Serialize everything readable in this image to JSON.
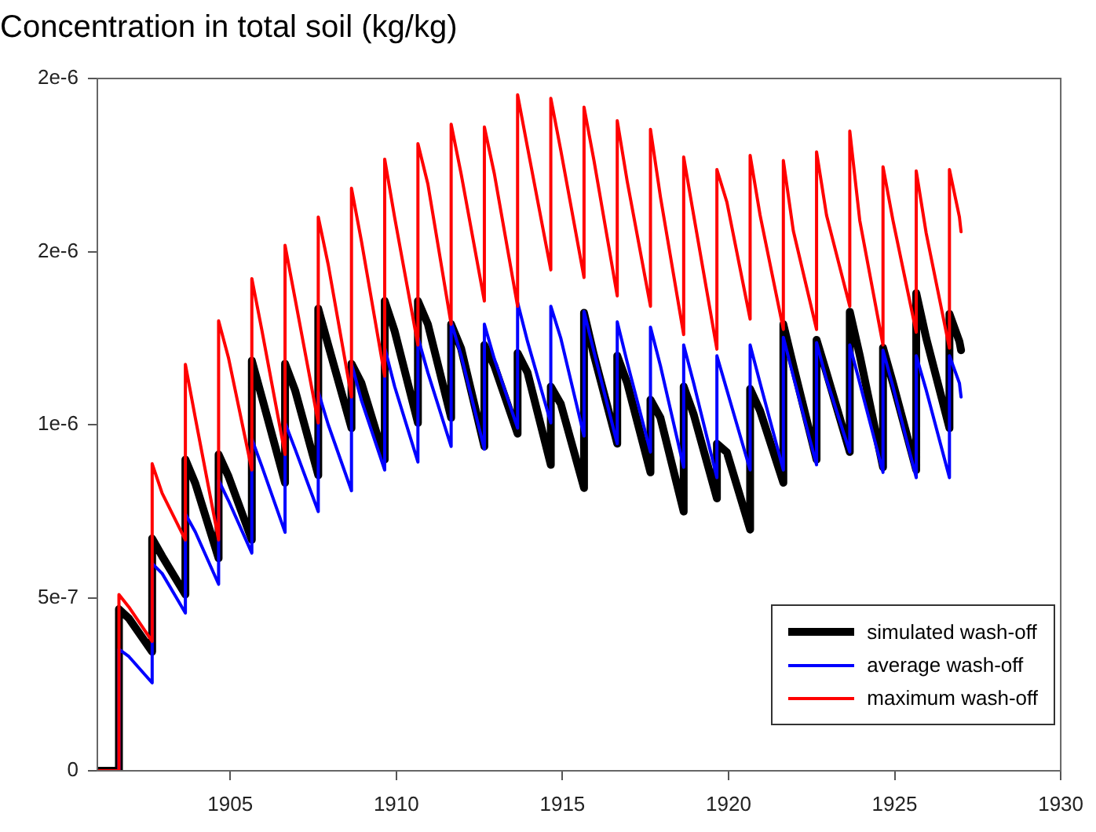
{
  "chart_data": {
    "type": "line",
    "title": "Concentration in total soil (kg/kg)",
    "x": [
      1901,
      1901.65,
      1901.65,
      1901.95,
      1902.65,
      1902.65,
      1902.95,
      1903.65,
      1903.65,
      1903.95,
      1904.65,
      1904.65,
      1904.95,
      1905.65,
      1905.65,
      1905.95,
      1906.65,
      1906.65,
      1906.95,
      1907.65,
      1907.65,
      1907.95,
      1908.65,
      1908.65,
      1908.95,
      1909.65,
      1909.65,
      1909.95,
      1910.65,
      1910.65,
      1910.95,
      1911.65,
      1911.65,
      1911.95,
      1912.65,
      1912.65,
      1912.95,
      1913.65,
      1913.65,
      1913.95,
      1914.65,
      1914.65,
      1914.95,
      1915.65,
      1915.65,
      1915.95,
      1916.65,
      1916.65,
      1916.95,
      1917.65,
      1917.65,
      1917.95,
      1918.65,
      1918.65,
      1918.95,
      1919.65,
      1919.65,
      1919.95,
      1920.65,
      1920.65,
      1920.95,
      1921.65,
      1921.65,
      1921.95,
      1922.65,
      1922.65,
      1922.95,
      1923.65,
      1923.65,
      1923.95,
      1924.65,
      1924.65,
      1924.95,
      1925.65,
      1925.65,
      1925.95,
      1926.65,
      1926.65,
      1926.95,
      1927
    ],
    "series": [
      {
        "name": "simulated wash-off",
        "color": "#000000",
        "values": [
          0,
          0,
          4.67e-07,
          4.4e-07,
          3.44e-07,
          6.71e-07,
          6.2e-07,
          5.09e-07,
          8.99e-07,
          8.3e-07,
          6.14e-07,
          9.14e-07,
          8.5e-07,
          6.67e-07,
          1.185e-06,
          1.08e-06,
          8.32e-07,
          1.176e-06,
          1.1e-06,
          8.54e-07,
          1.335e-06,
          1.23e-06,
          9.9e-07,
          1.176e-06,
          1.12e-06,
          8.99e-07,
          1.357e-06,
          1.27e-06,
          1.005e-06,
          1.357e-06,
          1.29e-06,
          1.02e-06,
          1.29e-06,
          1.22e-06,
          9.37e-07,
          1.23e-06,
          1.17e-06,
          9.74e-07,
          1.207e-06,
          1.15e-06,
          8.84e-07,
          1.11e-06,
          1.06e-06,
          8.17e-07,
          1.323e-06,
          1.2e-06,
          9.45e-07,
          1.199e-06,
          1.12e-06,
          8.62e-07,
          1.072e-06,
          1.02e-06,
          7.49e-07,
          1.11e-06,
          1.03e-06,
          7.87e-07,
          9.45e-07,
          9.2e-07,
          6.97e-07,
          1.103e-06,
          1.04e-06,
          8.32e-07,
          1.29e-06,
          1.17e-06,
          8.99e-07,
          1.245e-06,
          1.15e-06,
          9.21e-07,
          1.326e-06,
          1.2e-06,
          8.77e-07,
          1.222e-06,
          1.12e-06,
          8.69e-07,
          1.38e-06,
          1.25e-06,
          9.9e-07,
          1.32e-06,
          1.24e-06,
          1.215e-06
        ]
      },
      {
        "name": "average wash-off",
        "color": "#0000ff",
        "values": [
          0,
          0,
          3.51e-07,
          3.3e-07,
          2.54e-07,
          5.99e-07,
          5.7e-07,
          4.56e-07,
          7.42e-07,
          6.9e-07,
          5.39e-07,
          8.39e-07,
          7.8e-07,
          6.29e-07,
          9.59e-07,
          8.8e-07,
          6.89e-07,
          1.005e-06,
          9.3e-07,
          7.49e-07,
          1.095e-06,
          1e-06,
          8.09e-07,
          1.176e-06,
          1.07e-06,
          8.69e-07,
          1.222e-06,
          1.11e-06,
          8.92e-07,
          1.252e-06,
          1.15e-06,
          9.37e-07,
          1.297e-06,
          1.2e-06,
          9.29e-07,
          1.29e-06,
          1.19e-06,
          9.9e-07,
          1.353e-06,
          1.24e-06,
          1.005e-06,
          1.342e-06,
          1.25e-06,
          9.67e-07,
          1.327e-06,
          1.21e-06,
          9.45e-07,
          1.297e-06,
          1.18e-06,
          9.21e-07,
          1.282e-06,
          1.17e-06,
          8.77e-07,
          1.23e-06,
          1.12e-06,
          8.47e-07,
          1.199e-06,
          1.1e-06,
          8.69e-07,
          1.23e-06,
          1.12e-06,
          8.69e-07,
          1.252e-06,
          1.14e-06,
          8.84e-07,
          1.237e-06,
          1.13e-06,
          9.21e-07,
          1.23e-06,
          1.12e-06,
          8.62e-07,
          1.215e-06,
          1.11e-06,
          8.47e-07,
          1.199e-06,
          1.1e-06,
          8.47e-07,
          1.199e-06,
          1.12e-06,
          1.08e-06
        ]
      },
      {
        "name": "maximum wash-off",
        "color": "#ff0000",
        "values": [
          0,
          0,
          5.09e-07,
          4.73e-07,
          3.74e-07,
          8.87e-07,
          8.02e-07,
          6.67e-07,
          1.174e-06,
          1.019e-06,
          6.67e-07,
          1.3e-06,
          1.192e-06,
          8.69e-07,
          1.422e-06,
          1.274e-06,
          9.14e-07,
          1.518e-06,
          1.365e-06,
          1.005e-06,
          1.6e-06,
          1.462e-06,
          1.08e-06,
          1.683e-06,
          1.53e-06,
          1.14e-06,
          1.767e-06,
          1.598e-06,
          1.23e-06,
          1.812e-06,
          1.695e-06,
          1.29e-06,
          1.868e-06,
          1.725e-06,
          1.357e-06,
          1.86e-06,
          1.725e-06,
          1.342e-06,
          1.953e-06,
          1.8e-06,
          1.447e-06,
          1.943e-06,
          1.793e-06,
          1.425e-06,
          1.917e-06,
          1.763e-06,
          1.372e-06,
          1.878e-06,
          1.703e-06,
          1.342e-06,
          1.853e-06,
          1.658e-06,
          1.26e-06,
          1.773e-06,
          1.605e-06,
          1.218e-06,
          1.737e-06,
          1.643e-06,
          1.305e-06,
          1.778e-06,
          1.605e-06,
          1.275e-06,
          1.763e-06,
          1.56e-06,
          1.275e-06,
          1.788e-06,
          1.605e-06,
          1.342e-06,
          1.848e-06,
          1.59e-06,
          1.23e-06,
          1.745e-06,
          1.59e-06,
          1.267e-06,
          1.733e-06,
          1.553e-06,
          1.221e-06,
          1.737e-06,
          1.6e-06,
          1.557e-06
        ]
      }
    ],
    "xlim": [
      1901,
      1930
    ],
    "xticks": [
      1905,
      1910,
      1915,
      1920,
      1925,
      1930
    ],
    "ylim": [
      0,
      2e-06
    ],
    "yticks": [
      0,
      {
        "value": 5e-07,
        "label": "5e-7"
      },
      {
        "value": 1e-06,
        "label": "1e-6"
      },
      {
        "value": 1.5e-06,
        "label": "2e-6"
      },
      {
        "value": 2e-06,
        "label": "2e-6"
      }
    ],
    "legend": "bottom right",
    "marker": "none",
    "line_style": "solid"
  }
}
